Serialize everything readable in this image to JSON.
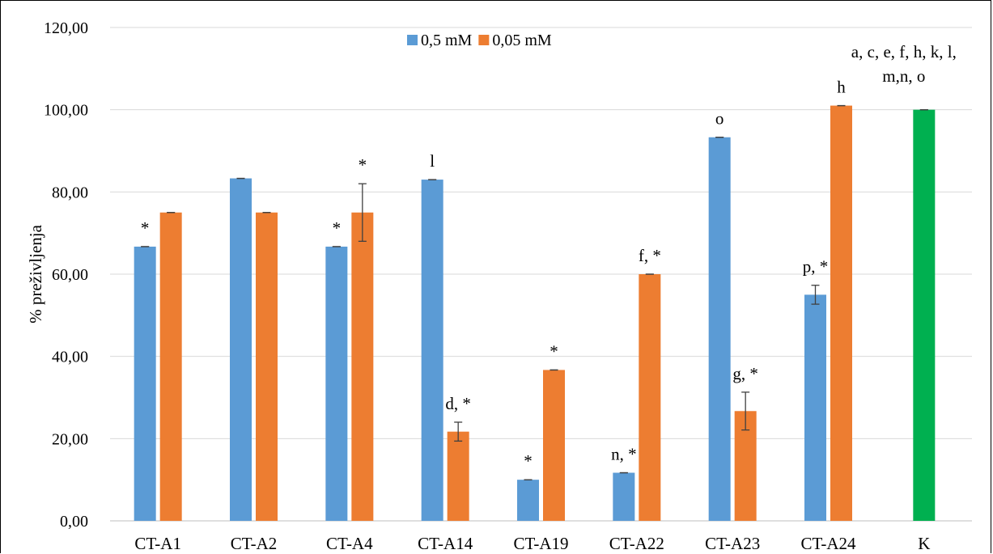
{
  "chart_data": {
    "type": "bar",
    "title": "",
    "xlabel": "",
    "ylabel": "% preživljenja",
    "ylim": [
      0,
      120
    ],
    "yticks": [
      "0,00",
      "20,00",
      "40,00",
      "60,00",
      "80,00",
      "100,00",
      "120,00"
    ],
    "ytick_values": [
      0,
      20,
      40,
      60,
      80,
      100,
      120
    ],
    "grid": true,
    "legend_position": "top-center",
    "categories": [
      "CT-A1",
      "CT-A2",
      "CT-A4",
      "CT-A14",
      "CT-A19",
      "CT-A22",
      "CT-A23",
      "CT-A24",
      "K"
    ],
    "series": [
      {
        "name": "0,5 mM",
        "color": "#5b9bd5",
        "values": [
          66.7,
          83.3,
          66.7,
          83.0,
          10.0,
          11.7,
          93.3,
          55.0,
          null
        ],
        "errors": [
          0,
          0,
          0,
          0,
          0,
          0,
          0,
          2.3,
          null
        ],
        "annotations": [
          "*",
          "",
          "*",
          "l",
          "*",
          "n, *",
          "o",
          "p, *",
          ""
        ]
      },
      {
        "name": "0,05 mM",
        "color": "#ed7d31",
        "values": [
          75.0,
          75.0,
          75.0,
          21.7,
          36.7,
          60.0,
          26.7,
          101.0,
          null
        ],
        "errors": [
          0,
          0,
          7.0,
          2.3,
          0,
          0,
          4.6,
          0,
          null
        ],
        "annotations": [
          "",
          "",
          "*",
          "d, *",
          "*",
          "f, *",
          "g, *",
          "h",
          ""
        ]
      },
      {
        "name": "",
        "color": "#00b050",
        "values": [
          null,
          null,
          null,
          null,
          null,
          null,
          null,
          null,
          100.0
        ],
        "errors": [
          null,
          null,
          null,
          null,
          null,
          null,
          null,
          null,
          0
        ],
        "annotations": [
          "",
          "",
          "",
          "",
          "",
          "",
          "",
          "",
          ""
        ]
      }
    ],
    "k_annotation_lines": [
      "a, c, e, f, h, k, l,",
      "m,n, o"
    ]
  }
}
